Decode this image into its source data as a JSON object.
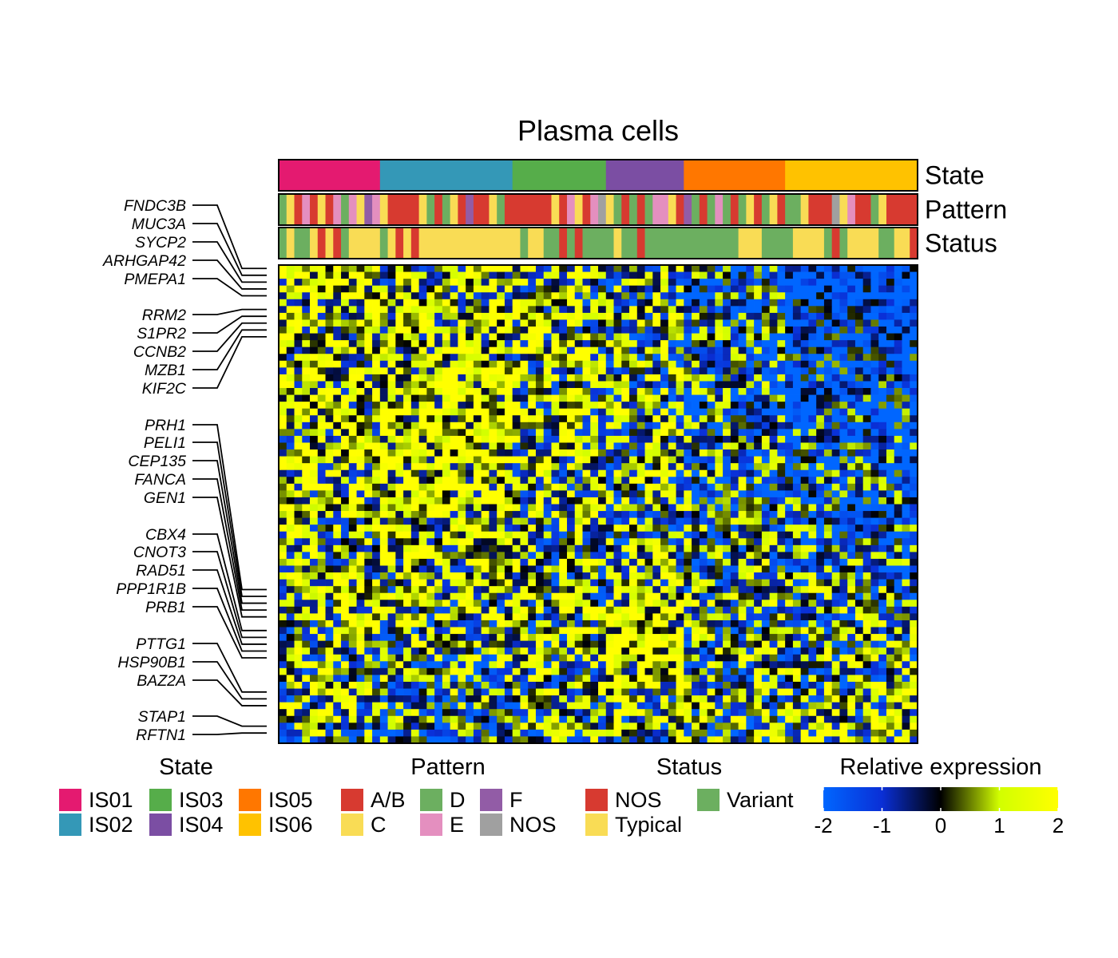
{
  "chart_data": {
    "type": "heatmap",
    "title": "Plasma cells",
    "n_rows": 70,
    "n_cols": 82,
    "annotation_tracks": [
      {
        "name": "State",
        "blocks": [
          {
            "label": "IS01",
            "count": 13
          },
          {
            "label": "IS02",
            "count": 17
          },
          {
            "label": "IS03",
            "count": 12
          },
          {
            "label": "IS04",
            "count": 10
          },
          {
            "label": "IS05",
            "count": 13
          },
          {
            "label": "IS06",
            "count": 17
          }
        ]
      },
      {
        "name": "Pattern",
        "sequence": [
          "D",
          "C",
          "A/B",
          "E",
          "A/B",
          "C",
          "A/B",
          "E",
          "D",
          "E",
          "C",
          "F",
          "E",
          "C",
          "A/B",
          "A/B",
          "A/B",
          "A/B",
          "C",
          "D",
          "A/B",
          "D",
          "C",
          "A/B",
          "F",
          "A/B",
          "A/B",
          "C",
          "D",
          "A/B",
          "A/B",
          "A/B",
          "A/B",
          "A/B",
          "A/B",
          "C",
          "A/B",
          "E",
          "C",
          "A/B",
          "E",
          "NOS",
          "C",
          "D",
          "A/B",
          "D",
          "A/B",
          "D",
          "E",
          "E",
          "C",
          "A/B",
          "F",
          "D",
          "A/B",
          "D",
          "E",
          "D",
          "A/B",
          "D",
          "C",
          "A/B",
          "D",
          "C",
          "A/B",
          "D",
          "D",
          "C",
          "A/B",
          "A/B",
          "A/B",
          "NOS",
          "C",
          "E",
          "A/B",
          "A/B",
          "D",
          "C",
          "A/B",
          "A/B",
          "A/B",
          "A/B"
        ]
      },
      {
        "name": "Status",
        "sequence": [
          "Variant",
          "Typical",
          "Variant",
          "Variant",
          "Typical",
          "NOS",
          "Typical",
          "NOS",
          "Variant",
          "Typical",
          "Typical",
          "Typical",
          "Typical",
          "Variant",
          "Typical",
          "NOS",
          "Typical",
          "NOS",
          "Typical",
          "Typical",
          "Typical",
          "Typical",
          "Typical",
          "Typical",
          "Typical",
          "Typical",
          "Typical",
          "Typical",
          "Typical",
          "Typical",
          "Typical",
          "Variant",
          "Typical",
          "Typical",
          "Variant",
          "Variant",
          "NOS",
          "Variant",
          "NOS",
          "Variant",
          "Variant",
          "Variant",
          "Variant",
          "Typical",
          "Variant",
          "Variant",
          "NOS",
          "Variant",
          "Variant",
          "Variant",
          "Variant",
          "Variant",
          "Variant",
          "Variant",
          "Variant",
          "Variant",
          "Variant",
          "Variant",
          "Variant",
          "Typical",
          "Typical",
          "Typical",
          "Variant",
          "Variant",
          "Variant",
          "Variant",
          "Typical",
          "Typical",
          "Typical",
          "Typical",
          "Variant",
          "NOS",
          "Variant",
          "Typical",
          "Typical",
          "Typical",
          "Typical",
          "Variant",
          "Variant",
          "Typical",
          "Typical",
          "NOS"
        ]
      }
    ],
    "row_label_anchors": [
      {
        "gene": "FNDC3B",
        "row": 0
      },
      {
        "gene": "MUC3A",
        "row": 1
      },
      {
        "gene": "SYCP2",
        "row": 2
      },
      {
        "gene": "ARHGAP42",
        "row": 3
      },
      {
        "gene": "PMEPA1",
        "row": 4
      },
      {
        "gene": "RRM2",
        "row": 6
      },
      {
        "gene": "S1PR2",
        "row": 7
      },
      {
        "gene": "CCNB2",
        "row": 8
      },
      {
        "gene": "MZB1",
        "row": 9
      },
      {
        "gene": "KIF2C",
        "row": 10
      },
      {
        "gene": "PRH1",
        "row": 47
      },
      {
        "gene": "PELI1",
        "row": 48
      },
      {
        "gene": "CEP135",
        "row": 49
      },
      {
        "gene": "FANCA",
        "row": 50
      },
      {
        "gene": "GEN1",
        "row": 51
      },
      {
        "gene": "CBX4",
        "row": 53
      },
      {
        "gene": "CNOT3",
        "row": 54
      },
      {
        "gene": "RAD51",
        "row": 55
      },
      {
        "gene": "PPP1R1B",
        "row": 56
      },
      {
        "gene": "PRB1",
        "row": 57
      },
      {
        "gene": "PTTG1",
        "row": 62
      },
      {
        "gene": "HSP90B1",
        "row": 63
      },
      {
        "gene": "BAZ2A",
        "row": 64
      },
      {
        "gene": "STAP1",
        "row": 67
      },
      {
        "gene": "RFTN1",
        "row": 68
      }
    ],
    "color_scale": {
      "title": "Relative expression",
      "min": -2,
      "max": 2,
      "ticks": [
        -2,
        -1,
        0,
        1,
        2
      ],
      "stops": [
        {
          "value": -2,
          "color": "#0066ff"
        },
        {
          "value": -1,
          "color": "#0a2fd6"
        },
        {
          "value": 0,
          "color": "#000000"
        },
        {
          "value": 1,
          "color": "#d2ff00"
        },
        {
          "value": 2,
          "color": "#ffff00"
        }
      ]
    },
    "legends": [
      {
        "title": "State",
        "items": [
          {
            "label": "IS01",
            "color": "#e41a70"
          },
          {
            "label": "IS02",
            "color": "#3498b7"
          },
          {
            "label": "IS03",
            "color": "#56ad4a"
          },
          {
            "label": "IS04",
            "color": "#7b4ea3"
          },
          {
            "label": "IS05",
            "color": "#ff7700"
          },
          {
            "label": "IS06",
            "color": "#ffc200"
          }
        ]
      },
      {
        "title": "Pattern",
        "items": [
          {
            "label": "A/B",
            "color": "#d73a30"
          },
          {
            "label": "C",
            "color": "#f9dc55"
          },
          {
            "label": "D",
            "color": "#6caf60"
          },
          {
            "label": "E",
            "color": "#e48fbf"
          },
          {
            "label": "F",
            "color": "#925ca6"
          },
          {
            "label": "NOS",
            "color": "#a0a0a0"
          }
        ]
      },
      {
        "title": "Status",
        "items": [
          {
            "label": "NOS",
            "color": "#d73a30"
          },
          {
            "label": "Typical",
            "color": "#f9dc55"
          },
          {
            "label": "Variant",
            "color": "#6caf60"
          }
        ]
      }
    ]
  }
}
